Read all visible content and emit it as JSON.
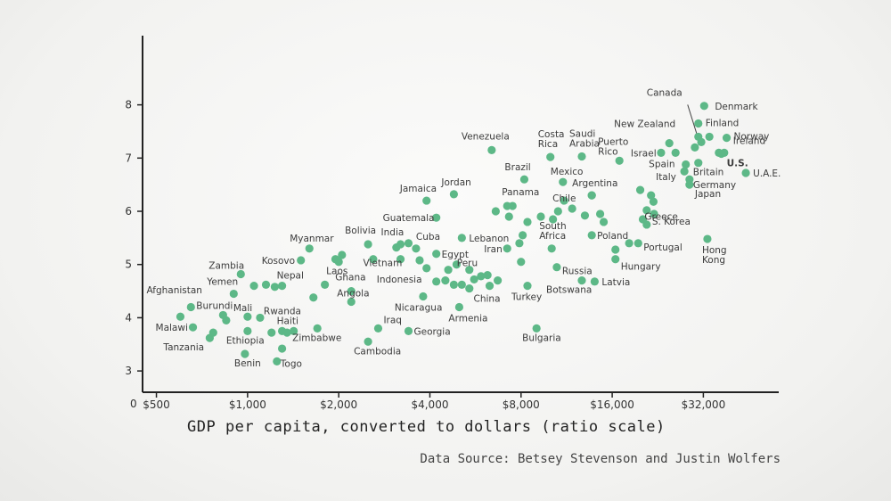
{
  "chart_data": {
    "type": "scatter",
    "xscale": "log",
    "xlim": [
      450,
      56000
    ],
    "ylim": [
      2.6,
      9.3
    ],
    "xticks": [
      {
        "value": 500,
        "label": "$500"
      },
      {
        "value": 1000,
        "label": "$1,000"
      },
      {
        "value": 2000,
        "label": "$2,000"
      },
      {
        "value": 4000,
        "label": "$4,000"
      },
      {
        "value": 8000,
        "label": "$8,000"
      },
      {
        "value": 16000,
        "label": "$16,000"
      },
      {
        "value": 32000,
        "label": "$32,000"
      }
    ],
    "yticks": [
      3,
      4,
      5,
      6,
      7,
      8
    ],
    "origin_label": "0",
    "xlabel": "GDP per capita, converted to dollars (ratio scale)",
    "source": "Data Source: Betsey Stevenson and Justin Wolfers",
    "dot_color": "#5db887",
    "points": [
      {
        "name": "Denmark",
        "x": 32200,
        "y": 7.98,
        "label": "Denmark",
        "lx": 12,
        "ly": 4
      },
      {
        "name": "Canada",
        "x": 30800,
        "y": 7.4,
        "label": "Canada",
        "lx": -58,
        "ly": -46
      },
      {
        "name": "Finland",
        "x": 30800,
        "y": 7.65,
        "label": "Finland",
        "lx": 8,
        "ly": 3
      },
      {
        "name": "New Zealand",
        "x": 24700,
        "y": 7.28,
        "label": "New Zealand",
        "lx": -62,
        "ly": -18
      },
      {
        "name": "Norway",
        "x": 38200,
        "y": 7.38,
        "label": "Norway",
        "lx": 8,
        "ly": 2
      },
      {
        "name": "Ireland",
        "x": 37500,
        "y": 7.1,
        "label": "Ireland",
        "lx": 10,
        "ly": -10
      },
      {
        "name": "U.S.",
        "x": 36700,
        "y": 7.08,
        "label": "U.S.",
        "bold": true,
        "lx": 6,
        "ly": 14
      },
      {
        "name": "Israel",
        "x": 23200,
        "y": 7.1,
        "label": "Israel",
        "lx": -34,
        "ly": 4
      },
      {
        "name": "Spain",
        "x": 25900,
        "y": 7.1,
        "label": "Spain",
        "lx": -30,
        "ly": 16
      },
      {
        "name": "Britain",
        "x": 30800,
        "y": 6.91,
        "label": "Britain",
        "lx": -6,
        "ly": 14
      },
      {
        "name": "Italy",
        "x": 27700,
        "y": 6.75,
        "label": "Italy",
        "lx": -32,
        "ly": 10
      },
      {
        "name": "Germany",
        "x": 28800,
        "y": 6.6,
        "label": "Germany",
        "lx": 4,
        "ly": 10
      },
      {
        "name": "Japan",
        "x": 28800,
        "y": 6.5,
        "label": "Japan",
        "lx": 6,
        "ly": 14
      },
      {
        "name": "U.A.E.",
        "x": 44200,
        "y": 6.72,
        "label": "U.A.E.",
        "lx": 8,
        "ly": 4
      },
      {
        "name": "Costa Rica",
        "x": 10000,
        "y": 7.02,
        "label": "Costa Rica",
        "lx": -14,
        "ly": -22
      },
      {
        "name": "Saudi Arabia",
        "x": 12700,
        "y": 7.03,
        "label": "Saudi Arabia",
        "lx": -14,
        "ly": -22
      },
      {
        "name": "Venezuela",
        "x": 6400,
        "y": 7.15,
        "label": "Venezuela",
        "lx": -34,
        "ly": -12
      },
      {
        "name": "Puerto Rico",
        "x": 16900,
        "y": 6.95,
        "label": "Puerto Rico",
        "lx": -24,
        "ly": -18
      },
      {
        "name": "Brazil",
        "x": 8200,
        "y": 6.6,
        "label": "Brazil",
        "lx": -22,
        "ly": -10
      },
      {
        "name": "Mexico",
        "x": 11000,
        "y": 6.55,
        "label": "Mexico",
        "lx": -14,
        "ly": -8
      },
      {
        "name": "Argentina",
        "x": 13700,
        "y": 6.3,
        "label": "Argentina",
        "lx": -22,
        "ly": -10
      },
      {
        "name": "Panama",
        "x": 7500,
        "y": 6.1,
        "label": "Panama",
        "lx": -12,
        "ly": -12
      },
      {
        "name": "Jordan",
        "x": 4800,
        "y": 6.32,
        "label": "Jordan",
        "lx": -14,
        "ly": -10
      },
      {
        "name": "Jamaica",
        "x": 3900,
        "y": 6.2,
        "label": "Jamaica",
        "lx": -30,
        "ly": -10
      },
      {
        "name": "Chile",
        "x": 11800,
        "y": 6.05,
        "label": "Chile",
        "lx": -22,
        "ly": -8
      },
      {
        "name": "Greece",
        "x": 21900,
        "y": 6.18,
        "label": "Greece",
        "lx": -10,
        "ly": 20
      },
      {
        "name": "Guatemala",
        "x": 4200,
        "y": 5.88,
        "label": "Guatemala",
        "lx": -60,
        "ly": 4
      },
      {
        "name": "S. Korea",
        "x": 20800,
        "y": 5.75,
        "label": "S. Korea",
        "lx": 6,
        "ly": 0
      },
      {
        "name": "Poland",
        "x": 13700,
        "y": 5.55,
        "label": "Poland",
        "lx": 6,
        "ly": 4
      },
      {
        "name": "Bolivia",
        "x": 2500,
        "y": 5.38,
        "label": "Bolivia",
        "lx": -26,
        "ly": -12
      },
      {
        "name": "India",
        "x": 3200,
        "y": 5.38,
        "label": "India",
        "lx": -22,
        "ly": -10
      },
      {
        "name": "Cuba",
        "x": 3600,
        "y": 5.3,
        "label": "Cuba",
        "lx": 0,
        "ly": -10
      },
      {
        "name": "Lebanon",
        "x": 5100,
        "y": 5.5,
        "label": "Lebanon",
        "lx": 8,
        "ly": 4
      },
      {
        "name": "Egypt",
        "x": 4200,
        "y": 5.2,
        "label": "Egypt",
        "lx": 6,
        "ly": 4
      },
      {
        "name": "Iran",
        "x": 7200,
        "y": 5.3,
        "label": "Iran",
        "lx": -26,
        "ly": 4
      },
      {
        "name": "South Africa",
        "x": 10100,
        "y": 5.3,
        "label": "South Africa",
        "lx": -14,
        "ly": -22
      },
      {
        "name": "Portugal",
        "x": 19500,
        "y": 5.4,
        "label": "Portugal",
        "lx": 6,
        "ly": 8
      },
      {
        "name": "Hong Kong",
        "x": 33000,
        "y": 5.48,
        "label": "Hong Kong",
        "lx": -6,
        "ly": 16
      },
      {
        "name": "Myanmar",
        "x": 1600,
        "y": 5.3,
        "label": "Myanmar",
        "lx": -22,
        "ly": -8
      },
      {
        "name": "Kosovo",
        "x": 1500,
        "y": 5.08,
        "label": "Kosovo",
        "lx": -44,
        "ly": 4
      },
      {
        "name": "Laos",
        "x": 2000,
        "y": 5.05,
        "label": "Laos",
        "lx": -14,
        "ly": 14
      },
      {
        "name": "Vietnam",
        "x": 3200,
        "y": 5.1,
        "label": "Vietnam",
        "lx": -42,
        "ly": 8
      },
      {
        "name": "Hungary",
        "x": 16400,
        "y": 5.1,
        "label": "Hungary",
        "lx": 6,
        "ly": 12
      },
      {
        "name": "Russia",
        "x": 10500,
        "y": 4.95,
        "label": "Russia",
        "lx": 6,
        "ly": 8
      },
      {
        "name": "Zambia",
        "x": 950,
        "y": 4.82,
        "label": "Zambia",
        "lx": -36,
        "ly": -6
      },
      {
        "name": "Indonesia",
        "x": 3900,
        "y": 4.93,
        "label": "Indonesia",
        "lx": -56,
        "ly": 16
      },
      {
        "name": "Peru",
        "x": 5400,
        "y": 4.9,
        "label": "Peru",
        "lx": -14,
        "ly": -4
      },
      {
        "name": "Nepal",
        "x": 1300,
        "y": 4.6,
        "label": "Nepal",
        "lx": -6,
        "ly": -8
      },
      {
        "name": "Ghana",
        "x": 2200,
        "y": 4.5,
        "label": "Ghana",
        "lx": -18,
        "ly": -12
      },
      {
        "name": "Botswana",
        "x": 12700,
        "y": 4.7,
        "label": "Botswana",
        "lx": -40,
        "ly": 14
      },
      {
        "name": "Latvia",
        "x": 14000,
        "y": 4.68,
        "label": "Latvia",
        "lx": 8,
        "ly": 4
      },
      {
        "name": "Yemen",
        "x": 900,
        "y": 4.45,
        "label": "Yemen",
        "lx": -30,
        "ly": -10
      },
      {
        "name": "Turkey",
        "x": 8400,
        "y": 4.6,
        "label": "Turkey",
        "lx": -18,
        "ly": 16
      },
      {
        "name": "China",
        "x": 6300,
        "y": 4.6,
        "label": "China",
        "lx": -18,
        "ly": 18
      },
      {
        "name": "Afghanistan",
        "x": 600,
        "y": 4.02,
        "label": "Afghanistan",
        "lx": -38,
        "ly": -26
      },
      {
        "name": "Burundi",
        "x": 650,
        "y": 4.2,
        "label": "Burundi",
        "lx": 6,
        "ly": 2
      },
      {
        "name": "Angola",
        "x": 2200,
        "y": 4.3,
        "label": "Angola",
        "lx": -16,
        "ly": -6
      },
      {
        "name": "Nicaragua",
        "x": 3800,
        "y": 4.4,
        "label": "Nicaragua",
        "lx": -32,
        "ly": 16
      },
      {
        "name": "Armenia",
        "x": 5000,
        "y": 4.2,
        "label": "Armenia",
        "lx": -12,
        "ly": 16
      },
      {
        "name": "Mali",
        "x": 1000,
        "y": 4.02,
        "label": "Mali",
        "lx": -16,
        "ly": -6
      },
      {
        "name": "Rwanda",
        "x": 1100,
        "y": 4.0,
        "label": "Rwanda",
        "lx": 4,
        "ly": -4
      },
      {
        "name": "Haiti",
        "x": 1300,
        "y": 3.75,
        "label": "Haiti",
        "lx": -6,
        "ly": -8
      },
      {
        "name": "Malawi",
        "x": 660,
        "y": 3.82,
        "label": "Malawi",
        "lx": -42,
        "ly": 4
      },
      {
        "name": "Tanzania",
        "x": 750,
        "y": 3.62,
        "label": "Tanzania",
        "lx": -52,
        "ly": 14
      },
      {
        "name": "Ethiopia",
        "x": 1000,
        "y": 3.75,
        "label": "Ethiopia",
        "lx": -24,
        "ly": 14
      },
      {
        "name": "Zimbabwe",
        "x": 1700,
        "y": 3.8,
        "label": "Zimbabwe",
        "lx": -28,
        "ly": 14
      },
      {
        "name": "Iraq",
        "x": 2700,
        "y": 3.8,
        "label": "Iraq",
        "lx": 6,
        "ly": -6
      },
      {
        "name": "Georgia",
        "x": 3400,
        "y": 3.75,
        "label": "Georgia",
        "lx": 6,
        "ly": 4
      },
      {
        "name": "Cambodia",
        "x": 2500,
        "y": 3.55,
        "label": "Cambodia",
        "lx": -16,
        "ly": 14
      },
      {
        "name": "Bulgaria",
        "x": 9000,
        "y": 3.8,
        "label": "Bulgaria",
        "lx": -16,
        "ly": 14
      },
      {
        "name": "Benin",
        "x": 980,
        "y": 3.32,
        "label": "Benin",
        "lx": -12,
        "ly": 14
      },
      {
        "name": "Togo",
        "x": 1250,
        "y": 3.18,
        "label": "Togo",
        "lx": 4,
        "ly": 6
      },
      {
        "x": 770,
        "y": 3.72
      },
      {
        "x": 850,
        "y": 3.95
      },
      {
        "x": 830,
        "y": 4.05
      },
      {
        "x": 1050,
        "y": 4.6
      },
      {
        "x": 1150,
        "y": 4.62
      },
      {
        "x": 1230,
        "y": 4.58
      },
      {
        "x": 1350,
        "y": 3.72
      },
      {
        "x": 1300,
        "y": 3.42
      },
      {
        "x": 1420,
        "y": 3.75
      },
      {
        "x": 1200,
        "y": 3.72
      },
      {
        "x": 1800,
        "y": 4.62
      },
      {
        "x": 1650,
        "y": 4.38
      },
      {
        "x": 1950,
        "y": 5.1
      },
      {
        "x": 2050,
        "y": 5.18
      },
      {
        "x": 2600,
        "y": 5.1
      },
      {
        "x": 3100,
        "y": 5.32
      },
      {
        "x": 3400,
        "y": 5.4
      },
      {
        "x": 3700,
        "y": 5.08
      },
      {
        "x": 4200,
        "y": 4.68
      },
      {
        "x": 4500,
        "y": 4.7
      },
      {
        "x": 4800,
        "y": 4.62
      },
      {
        "x": 4600,
        "y": 4.9
      },
      {
        "x": 5100,
        "y": 4.62
      },
      {
        "x": 5600,
        "y": 4.72
      },
      {
        "x": 5900,
        "y": 4.78
      },
      {
        "x": 6200,
        "y": 4.8
      },
      {
        "x": 6700,
        "y": 4.7
      },
      {
        "x": 8000,
        "y": 5.05
      },
      {
        "x": 7900,
        "y": 5.4
      },
      {
        "x": 8100,
        "y": 5.55
      },
      {
        "x": 7300,
        "y": 5.9
      },
      {
        "x": 6600,
        "y": 6.0
      },
      {
        "x": 8400,
        "y": 5.8
      },
      {
        "x": 10200,
        "y": 5.85
      },
      {
        "x": 10600,
        "y": 6.0
      },
      {
        "x": 13000,
        "y": 5.92
      },
      {
        "x": 14600,
        "y": 5.95
      },
      {
        "x": 15000,
        "y": 5.8
      },
      {
        "x": 13700,
        "y": 6.3
      },
      {
        "x": 16400,
        "y": 5.28
      },
      {
        "x": 18200,
        "y": 5.4
      },
      {
        "x": 20200,
        "y": 5.85
      },
      {
        "x": 20800,
        "y": 6.02
      },
      {
        "x": 22000,
        "y": 5.95
      },
      {
        "x": 19800,
        "y": 6.4
      },
      {
        "x": 21500,
        "y": 6.3
      },
      {
        "x": 28000,
        "y": 6.88
      },
      {
        "x": 30000,
        "y": 7.2
      },
      {
        "x": 31500,
        "y": 7.3
      },
      {
        "x": 33500,
        "y": 7.4
      },
      {
        "x": 36000,
        "y": 7.1
      },
      {
        "x": 7200,
        "y": 6.1
      },
      {
        "x": 11100,
        "y": 6.2
      },
      {
        "x": 9300,
        "y": 5.9
      },
      {
        "x": 4900,
        "y": 5.0
      },
      {
        "x": 5400,
        "y": 4.55
      }
    ]
  }
}
